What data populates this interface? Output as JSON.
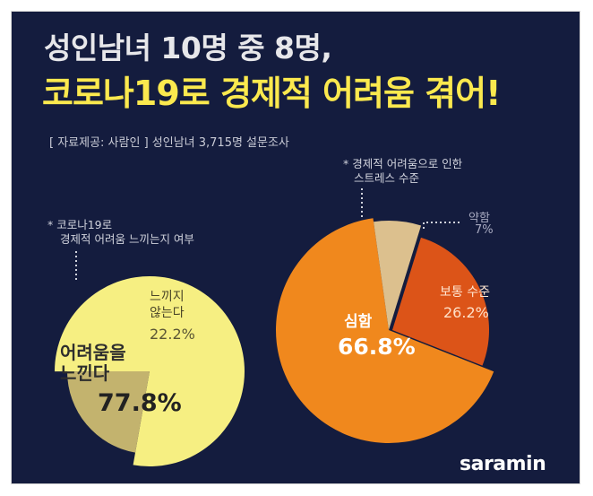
{
  "header": {
    "title_line1": "성인남녀 10명 중 8명,",
    "title_line2": "코로나19로 경제적 어려움 겪어!",
    "source": "[ 자료제공: 사람인 ] 성인남녀 3,715명 설문조사"
  },
  "brand": {
    "logo_text": "saramin"
  },
  "colors": {
    "background": "#141c3e",
    "title_line2": "#fbe94e",
    "left_yes": "#f6ef82",
    "left_no": "#c3b36e",
    "right_severe": "#f0881d",
    "right_moderate": "#dc5418",
    "right_mild": "#dcc08e"
  },
  "chart_data": [
    {
      "type": "pie",
      "note": [
        "* 코로나19로",
        "경제적 어려움 느끼는지 여부"
      ],
      "slices": [
        {
          "label": [
            "어려움을",
            "느낀다"
          ],
          "value": 77.8,
          "value_text": "77.8%"
        },
        {
          "label": [
            "느끼지",
            "않는다"
          ],
          "value": 22.2,
          "value_text": "22.2%"
        }
      ]
    },
    {
      "type": "pie",
      "note": [
        "* 경제적 어려움으로 인한",
        "스트레스 수준"
      ],
      "slices": [
        {
          "label": [
            "심함"
          ],
          "value": 66.8,
          "value_text": "66.8%"
        },
        {
          "label": [
            "보통 수준"
          ],
          "value": 26.2,
          "value_text": "26.2%"
        },
        {
          "label": [
            "약함"
          ],
          "value": 7,
          "value_text": "7%"
        }
      ]
    }
  ]
}
